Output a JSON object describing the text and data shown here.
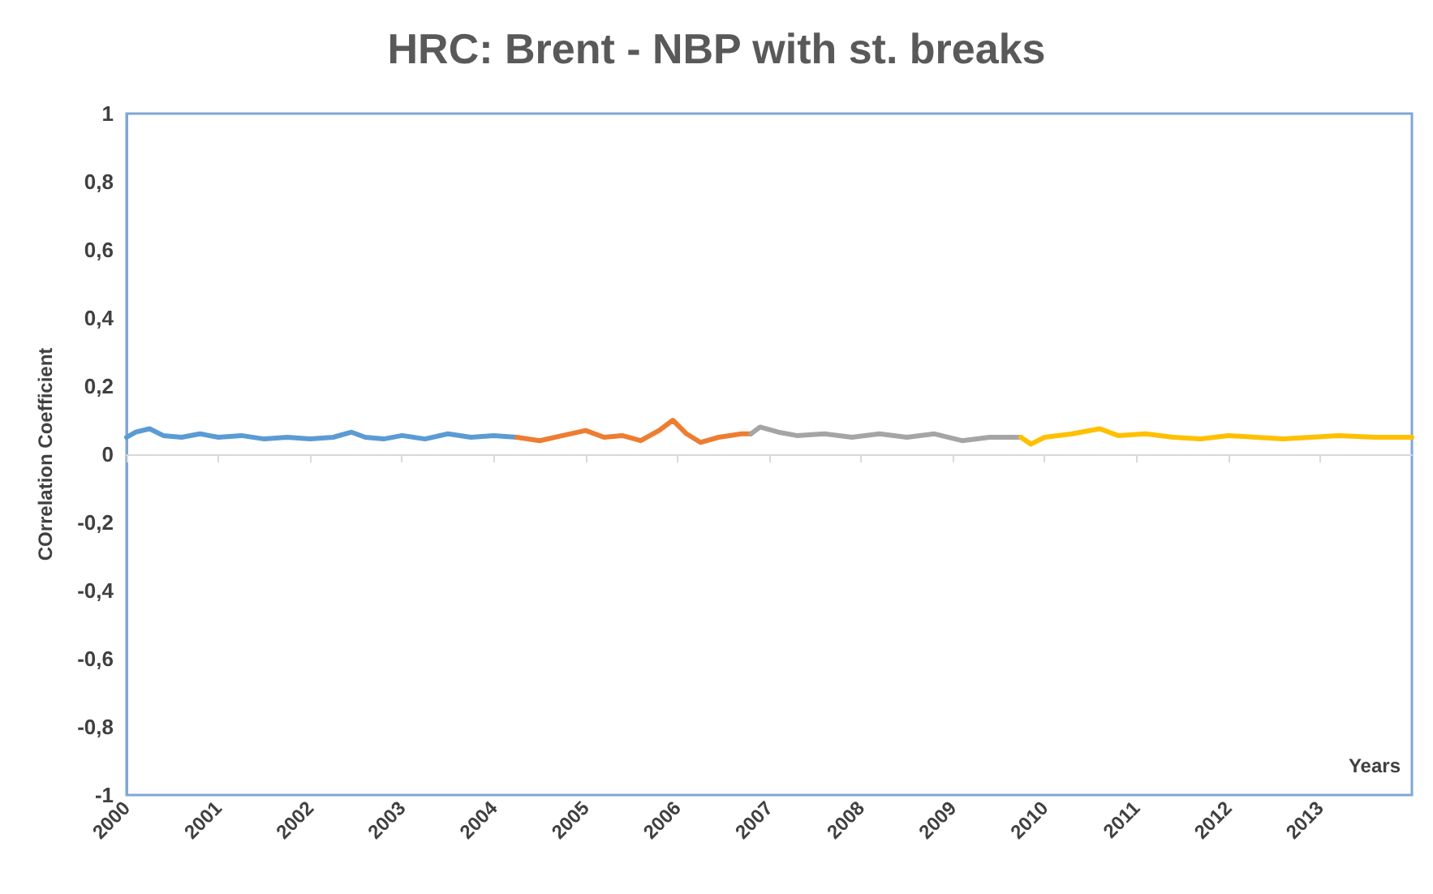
{
  "chart_data": {
    "type": "line",
    "title": "HRC: Brent - NBP with st. breaks",
    "xlabel": "Years",
    "ylabel": "COrrelation Coefficient",
    "xlim": [
      2000,
      2014
    ],
    "xticks": [
      2000,
      2001,
      2002,
      2003,
      2004,
      2005,
      2006,
      2007,
      2008,
      2009,
      2010,
      2011,
      2012,
      2013
    ],
    "ylim": [
      -1,
      1
    ],
    "yticks": [
      {
        "value": -1,
        "label": "-1"
      },
      {
        "value": -0.8,
        "label": "-0,8"
      },
      {
        "value": -0.6,
        "label": "-0,6"
      },
      {
        "value": -0.4,
        "label": "-0,4"
      },
      {
        "value": -0.2,
        "label": "-0,2"
      },
      {
        "value": 0,
        "label": "0"
      },
      {
        "value": 0.2,
        "label": "0,2"
      },
      {
        "value": 0.4,
        "label": "0,4"
      },
      {
        "value": 0.6,
        "label": "0,6"
      },
      {
        "value": 0.8,
        "label": "0,8"
      },
      {
        "value": 1,
        "label": "1"
      }
    ],
    "marker": "none",
    "line_style": "solid",
    "series": [
      {
        "color": "#5b9bd5",
        "x": [
          2000,
          2000.1,
          2000.25,
          2000.4,
          2000.6,
          2000.8,
          2001,
          2001.25,
          2001.5,
          2001.75,
          2002,
          2002.25,
          2002.45,
          2002.6,
          2002.8,
          2003,
          2003.25,
          2003.5,
          2003.75,
          2004,
          2004.25
        ],
        "values": [
          0.05,
          0.065,
          0.075,
          0.055,
          0.05,
          0.06,
          0.05,
          0.055,
          0.045,
          0.05,
          0.045,
          0.05,
          0.065,
          0.05,
          0.045,
          0.055,
          0.045,
          0.06,
          0.05,
          0.055,
          0.05
        ]
      },
      {
        "color": "#ed7d31",
        "x": [
          2004.25,
          2004.5,
          2004.75,
          2005,
          2005.2,
          2005.4,
          2005.6,
          2005.8,
          2005.95,
          2006.1,
          2006.25,
          2006.45,
          2006.7,
          2006.8
        ],
        "values": [
          0.05,
          0.04,
          0.055,
          0.07,
          0.05,
          0.055,
          0.04,
          0.07,
          0.1,
          0.06,
          0.035,
          0.05,
          0.06,
          0.06
        ]
      },
      {
        "color": "#a5a5a5",
        "x": [
          2006.8,
          2006.9,
          2007.1,
          2007.3,
          2007.6,
          2007.9,
          2008.2,
          2008.5,
          2008.8,
          2009.1,
          2009.4,
          2009.74
        ],
        "values": [
          0.06,
          0.08,
          0.065,
          0.055,
          0.06,
          0.05,
          0.06,
          0.05,
          0.06,
          0.04,
          0.05,
          0.05
        ]
      },
      {
        "color": "#ffc000",
        "x": [
          2009.74,
          2009.85,
          2010,
          2010.3,
          2010.6,
          2010.8,
          2011.1,
          2011.4,
          2011.7,
          2012,
          2012.3,
          2012.6,
          2012.9,
          2013.2,
          2013.6,
          2014
        ],
        "values": [
          0.05,
          0.03,
          0.05,
          0.06,
          0.075,
          0.055,
          0.06,
          0.05,
          0.045,
          0.055,
          0.05,
          0.045,
          0.05,
          0.055,
          0.05,
          0.05
        ]
      }
    ]
  }
}
